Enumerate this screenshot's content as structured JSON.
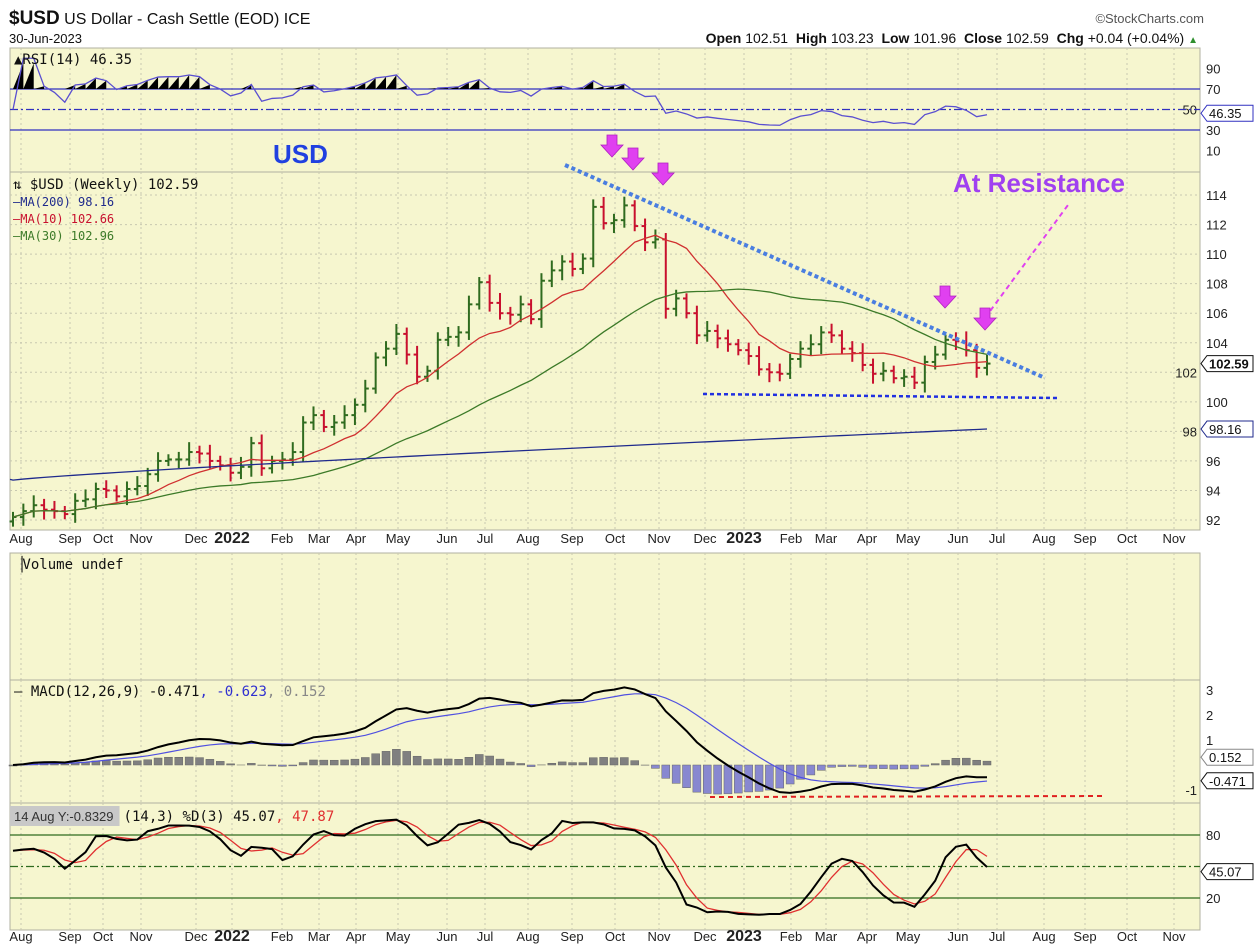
{
  "header": {
    "symbol": "$USD",
    "name": "US Dollar - Cash Settle (EOD) ICE",
    "date": "30-Jun-2023",
    "copyright": "©StockCharts.com",
    "open_label": "Open",
    "open": "102.51",
    "high_label": "High",
    "high": "103.23",
    "low_label": "Low",
    "low": "101.96",
    "close_label": "Close",
    "close": "102.59",
    "chg_label": "Chg",
    "chg": "+0.04 (+0.04%)"
  },
  "colors": {
    "up": "#2f6b1f",
    "down": "#c8102e",
    "ma200": "#1f2a8c",
    "ma10": "#d03030",
    "ma30": "#3c7a28",
    "rsi": "#5a4fd0",
    "annot_arrow": "#e040f0",
    "annot_text": "#a040f0",
    "usd_text": "#2040e0",
    "trend": "#4a7ee0",
    "panel": "#f6f6cf"
  },
  "chart_data": [
    {
      "type": "ohlc",
      "title": "$USD (Weekly) 102.59",
      "periodicity": "weekly",
      "x_start": "Aug 2021",
      "x_end": "Jun 2023",
      "ylim": [
        91,
        116
      ],
      "yticks": [
        92,
        94,
        96,
        98,
        100,
        102,
        104,
        106,
        108,
        110,
        112,
        114
      ],
      "x_labels": [
        "Aug",
        "Sep",
        "Oct",
        "Nov",
        "Dec",
        "2022",
        "Feb",
        "Mar",
        "Apr",
        "May",
        "Jun",
        "Jul",
        "Aug",
        "Sep",
        "Oct",
        "Nov",
        "Dec",
        "2023",
        "Feb",
        "Mar",
        "Apr",
        "May",
        "Jun",
        "Jul",
        "Aug",
        "Sep",
        "Oct",
        "Nov"
      ],
      "closes": [
        92.2,
        92.6,
        93.0,
        92.7,
        92.6,
        92.4,
        93.3,
        93.4,
        94.1,
        94.0,
        93.6,
        94.1,
        94.3,
        95.1,
        96.0,
        96.1,
        96.1,
        96.6,
        96.5,
        96.0,
        95.7,
        95.2,
        95.6,
        97.2,
        95.5,
        96.0,
        96.1,
        96.6,
        98.6,
        99.1,
        98.3,
        98.6,
        99.1,
        99.8,
        100.9,
        103.0,
        103.6,
        104.6,
        103.2,
        101.7,
        102.1,
        104.2,
        104.4,
        104.7,
        106.6,
        108.1,
        106.7,
        106.0,
        105.9,
        106.6,
        105.6,
        108.2,
        108.9,
        109.5,
        109.0,
        109.7,
        113.2,
        112.1,
        112.3,
        113.3,
        111.9,
        110.8,
        111.0,
        106.3,
        107.0,
        106.0,
        104.5,
        104.8,
        104.3,
        103.9,
        103.5,
        103.1,
        102.2,
        102.0,
        101.9,
        102.9,
        103.6,
        103.9,
        104.7,
        104.5,
        103.6,
        103.3,
        102.5,
        101.9,
        102.1,
        101.6,
        101.7,
        101.3,
        102.7,
        103.2,
        104.2,
        104.1,
        103.5,
        102.3,
        102.59
      ],
      "legend": [
        {
          "label": "$USD (Weekly) 102.59"
        },
        {
          "label": "MA(200) 98.16"
        },
        {
          "label": "MA(10) 102.66"
        },
        {
          "label": "MA(30) 102.96"
        }
      ],
      "ma200_range": [
        94.7,
        98.16
      ],
      "last_value_tags": [
        "102.59",
        "98.16"
      ]
    },
    {
      "type": "line",
      "title": "RSI(14) 46.35",
      "ylim": [
        0,
        100
      ],
      "yticks": [
        90,
        70,
        50,
        30,
        10
      ],
      "reference_lines": [
        70,
        50,
        30
      ],
      "last_tag": "46.35"
    },
    {
      "type": "bar",
      "title": "Volume undef"
    },
    {
      "type": "line+bar",
      "title": "MACD(12,26,9)",
      "macd": "-0.471",
      "signal": "-0.623",
      "histogram": "0.152",
      "yticks": [
        3,
        2,
        1,
        -1
      ],
      "last_tags": [
        "0.152",
        "-0.471"
      ]
    },
    {
      "type": "line",
      "title": "(14,3) %D(3)",
      "k": "45.07",
      "d": "47.87",
      "yticks": [
        80,
        20
      ],
      "reference_lines": [
        80,
        50,
        20
      ],
      "last_tag": "45.07",
      "cursor_readout": "14 Aug Y:-0.8329"
    }
  ],
  "annotations": {
    "usd": "USD",
    "resistance": "At Resistance"
  }
}
